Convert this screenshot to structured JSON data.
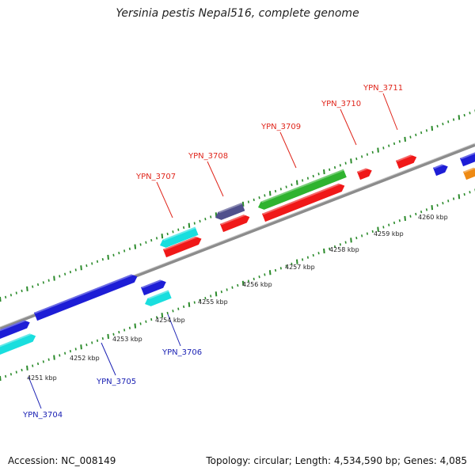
{
  "title": "Yersinia pestis Nepal516, complete genome",
  "footer": {
    "accession": "Accession: NC_008149",
    "summary": "Topology: circular; Length: 4,534,590 bp; Genes: 4,085"
  },
  "colors": {
    "label_top": "#e0261c",
    "label_bottom": "#1c22b4",
    "backbone": "#8c8c8c",
    "ticks": "#2a8a2a"
  },
  "ruler": [
    "4251 kbp",
    "4252 kbp",
    "4253 kbp",
    "4254 kbp",
    "4255 kbp",
    "4256 kbp",
    "4257 kbp",
    "4258 kbp",
    "4259 kbp",
    "4260 kbp"
  ],
  "gene_labels_top": [
    "YPN_3707",
    "YPN_3708",
    "YPN_3709",
    "YPN_3710",
    "YPN_3711"
  ],
  "gene_labels_bottom": [
    "YPN_3704",
    "YPN_3705",
    "YPN_3706"
  ]
}
